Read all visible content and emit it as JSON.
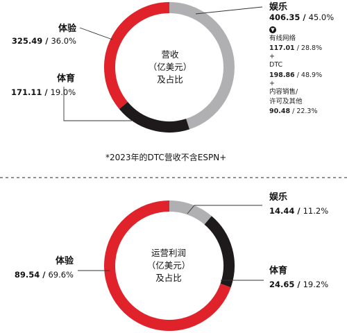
{
  "colors": {
    "entertainment": "#b0b0b2",
    "sports": "#1e1a1b",
    "experiences": "#e0222b"
  },
  "chart_data": [
    {
      "type": "pie",
      "title_lines": [
        "营收",
        "（亿美元）",
        "及占比"
      ],
      "series": [
        {
          "name": "娱乐",
          "value": 406.35,
          "percent": "45.0%"
        },
        {
          "name": "体育",
          "value": 171.11,
          "percent": "19.0%"
        },
        {
          "name": "体验",
          "value": 325.49,
          "percent": "36.0%"
        }
      ],
      "entertainment_breakdown": [
        {
          "name": "有线网络",
          "value": 117.01,
          "percent": "28.8%"
        },
        {
          "name": "DTC",
          "value": 198.86,
          "percent": "48.9%"
        },
        {
          "name": "内容销售/许可及其他",
          "name_lines": [
            "内容销售/",
            "许可及其他"
          ],
          "value": 90.48,
          "percent": "22.3%"
        }
      ],
      "plus": "+"
    },
    {
      "type": "pie",
      "title_lines": [
        "运营利润",
        "（亿美元）",
        "及占比"
      ],
      "series": [
        {
          "name": "娱乐",
          "value": 14.44,
          "percent": "11.2%"
        },
        {
          "name": "体育",
          "value": 24.65,
          "percent": "19.2%"
        },
        {
          "name": "体验",
          "value": 89.54,
          "percent": "69.6%"
        }
      ]
    }
  ],
  "footnote": "*2023年的DTC营收不含ESPN+"
}
